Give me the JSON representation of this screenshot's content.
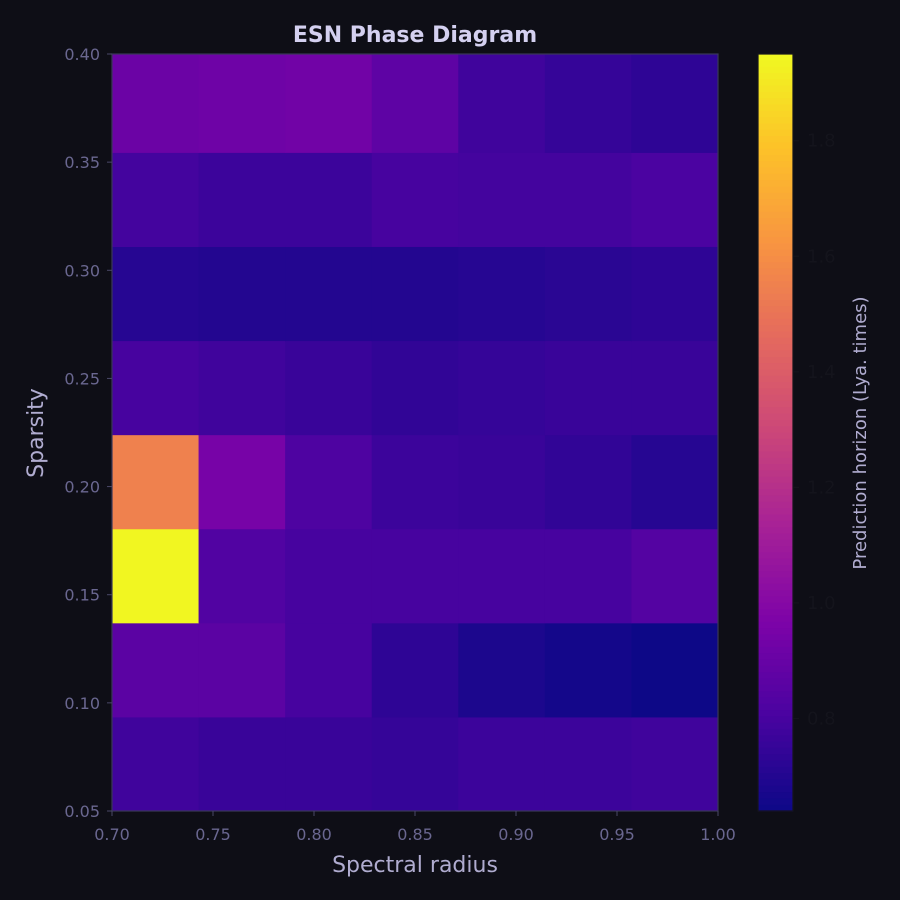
{
  "chart_data": {
    "type": "heatmap",
    "title": "ESN Phase Diagram",
    "xlabel": "Spectral radius",
    "ylabel": "Sparsity",
    "xlim": [
      0.7,
      1.0
    ],
    "ylim": [
      0.05,
      0.4
    ],
    "x_ticks": [
      "0.70",
      "0.75",
      "0.80",
      "0.85",
      "0.90",
      "0.95",
      "1.00"
    ],
    "y_ticks": [
      "0.05",
      "0.10",
      "0.15",
      "0.20",
      "0.25",
      "0.30",
      "0.35",
      "0.40"
    ],
    "x_edges": [
      0.7,
      0.742857,
      0.785714,
      0.828571,
      0.871429,
      0.914286,
      0.957143,
      1.0
    ],
    "y_edges": [
      0.05,
      0.0935,
      0.137,
      0.1805,
      0.224,
      0.2675,
      0.311,
      0.3545,
      0.4
    ],
    "values": [
      [
        0.78,
        0.76,
        0.76,
        0.75,
        0.77,
        0.77,
        0.78
      ],
      [
        0.86,
        0.86,
        0.8,
        0.73,
        0.68,
        0.66,
        0.63
      ],
      [
        1.94,
        0.83,
        0.8,
        0.8,
        0.8,
        0.8,
        0.84
      ],
      [
        1.55,
        0.95,
        0.82,
        0.77,
        0.76,
        0.74,
        0.71
      ],
      [
        0.8,
        0.78,
        0.76,
        0.74,
        0.75,
        0.76,
        0.76
      ],
      [
        0.71,
        0.7,
        0.7,
        0.7,
        0.71,
        0.72,
        0.73
      ],
      [
        0.79,
        0.77,
        0.77,
        0.8,
        0.79,
        0.79,
        0.81
      ],
      [
        0.91,
        0.92,
        0.93,
        0.87,
        0.78,
        0.75,
        0.73
      ]
    ],
    "colormap": "plasma",
    "vmin": 0.64,
    "vmax": 1.95,
    "colorbar": {
      "label": "Prediction horizon (Lya. times)",
      "ticks": [
        "0.8",
        "1.0",
        "1.2",
        "1.4",
        "1.6",
        "1.8"
      ]
    },
    "colors": {
      "background": "#0e0e16",
      "title": "#d4d0f0",
      "axis_label": "#b0acd0",
      "tick_label": "#6a6790"
    }
  }
}
